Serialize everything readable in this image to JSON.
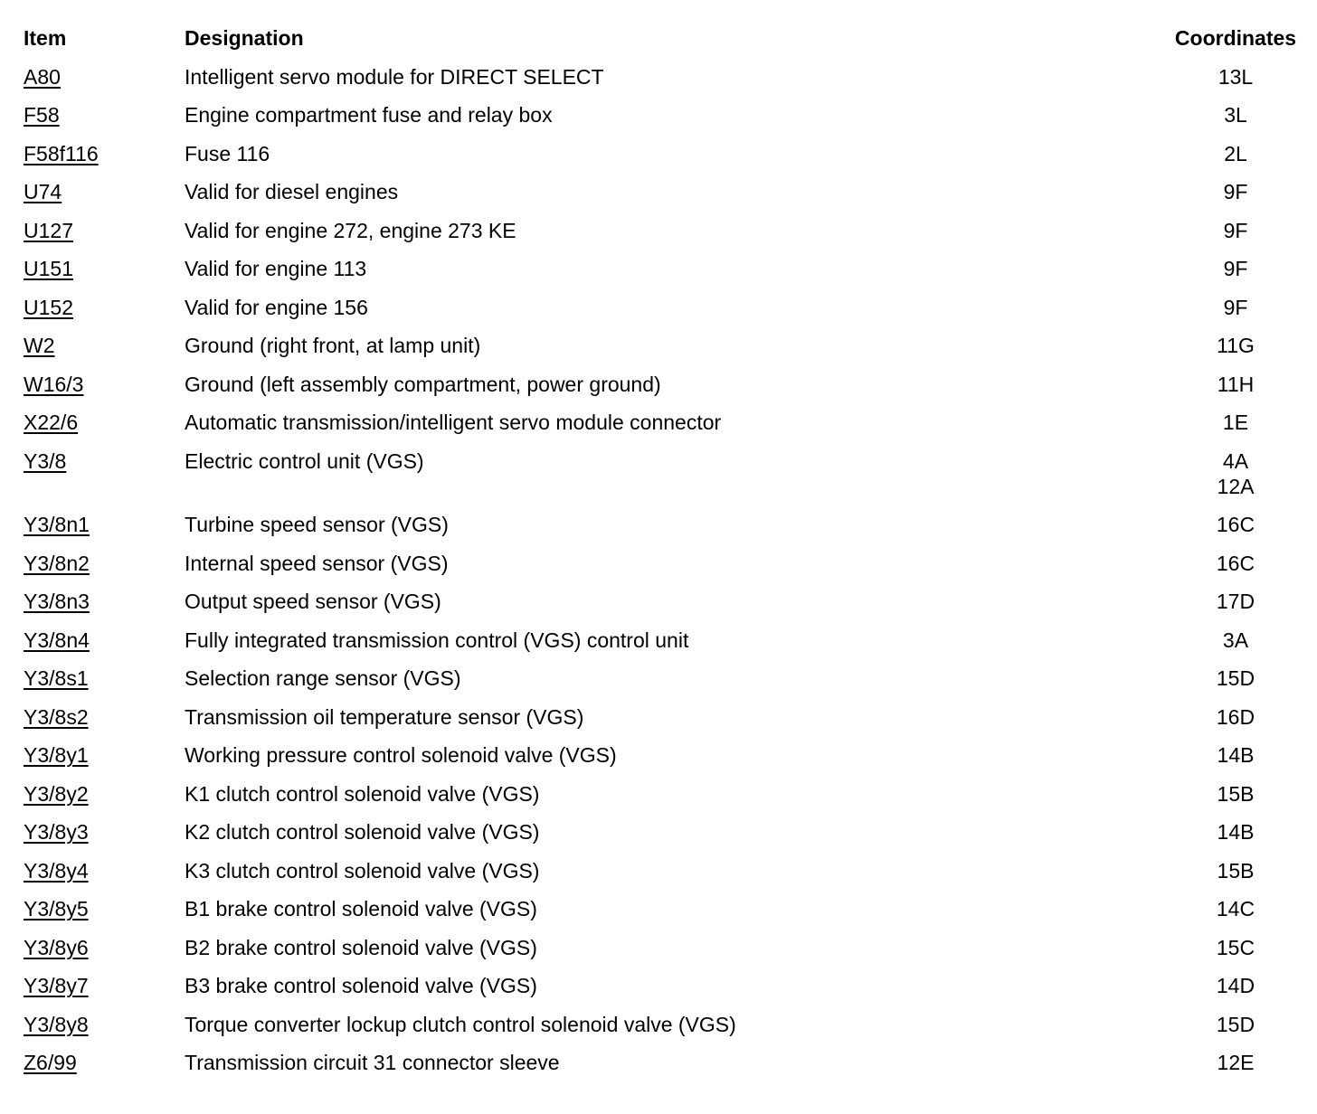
{
  "table": {
    "headers": {
      "item": "Item",
      "designation": "Designation",
      "coordinates": "Coordinates"
    },
    "rows": [
      {
        "item": "A80",
        "designation": "Intelligent servo module for DIRECT SELECT",
        "coords": [
          "13L"
        ]
      },
      {
        "item": "F58",
        "designation": "Engine compartment fuse and relay box",
        "coords": [
          "3L"
        ]
      },
      {
        "item": "F58f116",
        "designation": "Fuse 116",
        "coords": [
          "2L"
        ]
      },
      {
        "item": "U74",
        "designation": "Valid for diesel engines",
        "coords": [
          "9F"
        ]
      },
      {
        "item": "U127",
        "designation": "Valid for engine 272, engine 273 KE",
        "coords": [
          "9F"
        ]
      },
      {
        "item": "U151",
        "designation": "Valid for engine 113",
        "coords": [
          "9F"
        ]
      },
      {
        "item": "U152",
        "designation": "Valid for engine 156",
        "coords": [
          "9F"
        ]
      },
      {
        "item": "W2",
        "designation": "Ground (right front, at lamp unit)",
        "coords": [
          "11G"
        ]
      },
      {
        "item": "W16/3",
        "designation": "Ground (left assembly compartment, power ground)",
        "coords": [
          "11H"
        ]
      },
      {
        "item": "X22/6",
        "designation": "Automatic transmission/intelligent servo module connector",
        "coords": [
          "1E"
        ]
      },
      {
        "item": "Y3/8",
        "designation": "Electric control unit (VGS)",
        "coords": [
          "4A",
          "12A"
        ]
      },
      {
        "item": "Y3/8n1",
        "designation": "Turbine speed sensor (VGS)",
        "coords": [
          "16C"
        ]
      },
      {
        "item": "Y3/8n2",
        "designation": "Internal speed sensor (VGS)",
        "coords": [
          "16C"
        ]
      },
      {
        "item": "Y3/8n3",
        "designation": "Output speed sensor (VGS)",
        "coords": [
          "17D"
        ]
      },
      {
        "item": "Y3/8n4",
        "designation": "Fully integrated transmission control (VGS) control unit",
        "coords": [
          "3A"
        ]
      },
      {
        "item": "Y3/8s1",
        "designation": "Selection range sensor (VGS)",
        "coords": [
          "15D"
        ]
      },
      {
        "item": "Y3/8s2",
        "designation": "Transmission oil temperature sensor (VGS)",
        "coords": [
          "16D"
        ]
      },
      {
        "item": "Y3/8y1",
        "designation": "Working pressure control solenoid valve (VGS)",
        "coords": [
          "14B"
        ]
      },
      {
        "item": "Y3/8y2",
        "designation": "K1 clutch control solenoid valve (VGS)",
        "coords": [
          "15B"
        ]
      },
      {
        "item": "Y3/8y3",
        "designation": "K2 clutch control solenoid valve (VGS)",
        "coords": [
          "14B"
        ]
      },
      {
        "item": "Y3/8y4",
        "designation": "K3 clutch control solenoid valve (VGS)",
        "coords": [
          "15B"
        ]
      },
      {
        "item": "Y3/8y5",
        "designation": "B1 brake control solenoid valve (VGS)",
        "coords": [
          "14C"
        ]
      },
      {
        "item": "Y3/8y6",
        "designation": "B2 brake control solenoid valve (VGS)",
        "coords": [
          "15C"
        ]
      },
      {
        "item": "Y3/8y7",
        "designation": "B3 brake control solenoid valve (VGS)",
        "coords": [
          "14D"
        ]
      },
      {
        "item": "Y3/8y8",
        "designation": "Torque converter lockup clutch control solenoid valve (VGS)",
        "coords": [
          "15D"
        ]
      },
      {
        "item": "Z6/99",
        "designation": "Transmission circuit 31 connector sleeve",
        "coords": [
          "12E"
        ]
      }
    ]
  }
}
